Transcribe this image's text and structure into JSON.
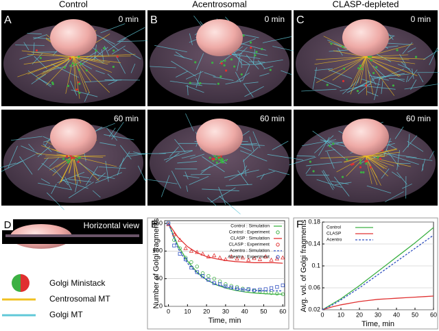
{
  "figure": {
    "columns": [
      "Control",
      "Acentrosomal",
      "CLASP-depleted"
    ],
    "panel_letters": [
      "A",
      "B",
      "C"
    ],
    "times": [
      "0 min",
      "60 min"
    ],
    "panel_d": {
      "letter": "D",
      "label": "Horizontal view"
    },
    "legend": [
      "Golgi Ministack",
      "Centrosomal MT",
      "Golgi MT"
    ],
    "panel_e_letter": "E",
    "panel_f_letter": "F"
  },
  "chart_data": [
    {
      "type": "line",
      "xlabel": "Time, min",
      "ylabel": "Number of Golgi fragments",
      "xlim": [
        -2,
        61
      ],
      "ylim": [
        0,
        155
      ],
      "xticks": [
        0,
        10,
        20,
        30,
        40,
        50,
        60
      ],
      "yticks": [
        0,
        50,
        100,
        150
      ],
      "grid": true,
      "legend": "upper right",
      "series": [
        {
          "name": "Control : Simulation",
          "color": "#3cb043",
          "mode": "line",
          "x": [
            0,
            5,
            10,
            15,
            20,
            25,
            30,
            35,
            40,
            45,
            50,
            55,
            60
          ],
          "values": [
            150,
            110,
            82,
            62,
            48,
            39,
            33,
            29,
            26,
            24,
            23,
            22,
            22
          ]
        },
        {
          "name": "Control : Experiment",
          "color": "#3cb043",
          "mode": "circle",
          "x": [
            0,
            3,
            6,
            9,
            12,
            15,
            18,
            21,
            24,
            27,
            30,
            33,
            36,
            39,
            42,
            45,
            48,
            51,
            54,
            57,
            60
          ],
          "values": [
            150,
            120,
            105,
            88,
            80,
            72,
            60,
            55,
            50,
            45,
            40,
            37,
            35,
            32,
            30,
            28,
            27,
            25,
            24,
            23,
            22
          ]
        },
        {
          "name": "CLASP : Simulation",
          "color": "#e03030",
          "mode": "line",
          "x": [
            0,
            5,
            10,
            15,
            20,
            25,
            30,
            35,
            40,
            45,
            50,
            55,
            60
          ],
          "values": [
            150,
            125,
            108,
            97,
            90,
            86,
            83,
            81,
            80,
            79,
            79,
            79,
            78
          ]
        },
        {
          "name": "CLASP : Experiment",
          "color": "#e03030",
          "mode": "triangle",
          "x": [
            0,
            3,
            6,
            9,
            12,
            15,
            18,
            21,
            24,
            27,
            30,
            33,
            36,
            39,
            42,
            45,
            48,
            51,
            54,
            57,
            60
          ],
          "values": [
            148,
            130,
            120,
            105,
            100,
            98,
            95,
            90,
            92,
            88,
            85,
            90,
            86,
            88,
            84,
            87,
            85,
            90,
            84,
            86,
            88
          ]
        },
        {
          "name": "Acentro : Simulation",
          "color": "#3050c0",
          "mode": "dashed",
          "x": [
            0,
            5,
            10,
            15,
            20,
            25,
            30,
            35,
            40,
            45,
            50,
            55,
            60
          ],
          "values": [
            150,
            105,
            78,
            60,
            48,
            40,
            35,
            32,
            30,
            29,
            28,
            28,
            28
          ]
        },
        {
          "name": "Acentro : Experiment",
          "color": "#3050c0",
          "mode": "square",
          "x": [
            0,
            3,
            6,
            9,
            12,
            15,
            18,
            21,
            24,
            27,
            30,
            33,
            36,
            39,
            42,
            45,
            48,
            51,
            54,
            57,
            60
          ],
          "values": [
            150,
            110,
            95,
            85,
            70,
            62,
            55,
            48,
            42,
            40,
            36,
            34,
            32,
            30,
            31,
            29,
            30,
            31,
            33,
            35,
            38
          ]
        }
      ]
    },
    {
      "type": "line",
      "xlabel": "Time, min",
      "ylabel": "Avg. vol. of Golgi fragments",
      "xlim": [
        0,
        60
      ],
      "ylim": [
        0.02,
        0.18
      ],
      "xticks": [
        0,
        10,
        20,
        30,
        40,
        50,
        60
      ],
      "yticks": [
        0.02,
        0.06,
        0.1,
        0.14,
        0.18
      ],
      "grid": true,
      "legend": "upper left",
      "series": [
        {
          "name": "Control",
          "color": "#3cb043",
          "mode": "line",
          "x": [
            0,
            5,
            10,
            15,
            20,
            25,
            30,
            35,
            40,
            45,
            50,
            55,
            60
          ],
          "values": [
            0.02,
            0.03,
            0.04,
            0.052,
            0.064,
            0.077,
            0.09,
            0.103,
            0.116,
            0.129,
            0.142,
            0.156,
            0.17
          ]
        },
        {
          "name": "CLASP",
          "color": "#e03030",
          "mode": "line",
          "x": [
            0,
            5,
            10,
            15,
            20,
            25,
            30,
            35,
            40,
            45,
            50,
            55,
            60
          ],
          "values": [
            0.02,
            0.025,
            0.029,
            0.032,
            0.035,
            0.037,
            0.039,
            0.04,
            0.041,
            0.042,
            0.043,
            0.044,
            0.045
          ]
        },
        {
          "name": "Acentro",
          "color": "#3050c0",
          "mode": "dashed",
          "x": [
            0,
            5,
            10,
            15,
            20,
            25,
            30,
            35,
            40,
            45,
            50,
            55,
            60
          ],
          "values": [
            0.02,
            0.028,
            0.038,
            0.049,
            0.06,
            0.072,
            0.084,
            0.096,
            0.108,
            0.12,
            0.132,
            0.144,
            0.156
          ]
        }
      ]
    }
  ]
}
